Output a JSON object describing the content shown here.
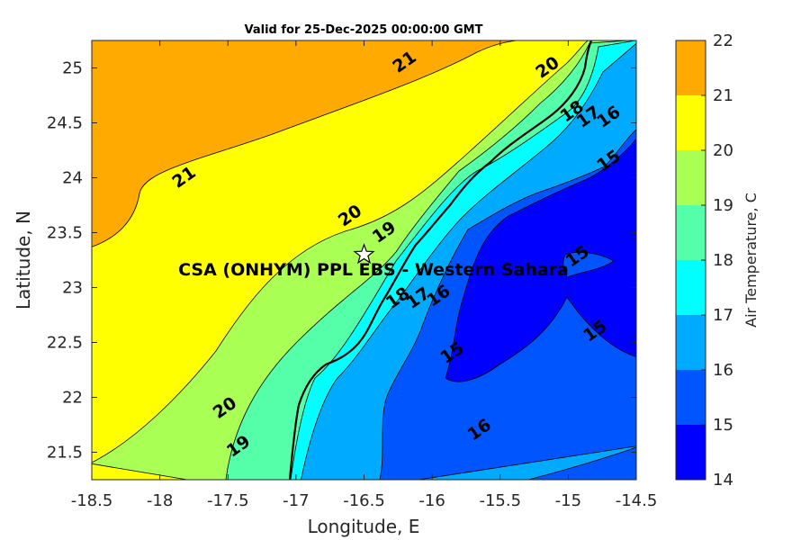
{
  "chart_data": {
    "type": "contour",
    "title": "Valid for 25-Dec-2025 00:00:00 GMT",
    "xlabel": "Longitude, E",
    "ylabel": "Latitude, N",
    "xlim": [
      -18.5,
      -14.5
    ],
    "ylim": [
      21.25,
      25.25
    ],
    "x_ticks": [
      "-18.5",
      "-18",
      "-17.5",
      "-17",
      "-16.5",
      "-16",
      "-15.5",
      "-15",
      "-14.5"
    ],
    "y_ticks": [
      "21.5",
      "22",
      "22.5",
      "23",
      "23.5",
      "24",
      "24.5",
      "25"
    ],
    "colorbar": {
      "label": "Air Temperature, C",
      "ticks": [
        "14",
        "15",
        "16",
        "17",
        "18",
        "19",
        "20",
        "21",
        "22"
      ],
      "levels": [
        14,
        15,
        16,
        17,
        18,
        19,
        20,
        21,
        22
      ],
      "colors": [
        "#0000ff",
        "#0055ff",
        "#00aaff",
        "#00ffff",
        "#55ffaa",
        "#aaff55",
        "#ffff00",
        "#ffaa00",
        "#ff5500"
      ]
    },
    "contour_labels": [
      {
        "text": "21",
        "lon": -16.2,
        "lat": 25.05
      },
      {
        "text": "20",
        "lon": -15.15,
        "lat": 25.0
      },
      {
        "text": "21",
        "lon": -17.82,
        "lat": 24.0
      },
      {
        "text": "18",
        "lon": -14.97,
        "lat": 24.6
      },
      {
        "text": "17",
        "lon": -14.85,
        "lat": 24.55
      },
      {
        "text": "16",
        "lon": -14.7,
        "lat": 24.55
      },
      {
        "text": "20",
        "lon": -16.6,
        "lat": 23.65
      },
      {
        "text": "19",
        "lon": -16.35,
        "lat": 23.5
      },
      {
        "text": "15",
        "lon": -14.7,
        "lat": 24.15
      },
      {
        "text": "15",
        "lon": -14.93,
        "lat": 23.28
      },
      {
        "text": "18",
        "lon": -16.25,
        "lat": 22.9
      },
      {
        "text": "17",
        "lon": -16.1,
        "lat": 22.9
      },
      {
        "text": "16",
        "lon": -15.95,
        "lat": 22.92
      },
      {
        "text": "15",
        "lon": -14.8,
        "lat": 22.6
      },
      {
        "text": "15",
        "lon": -15.85,
        "lat": 22.4
      },
      {
        "text": "20",
        "lon": -17.52,
        "lat": 21.9
      },
      {
        "text": "19",
        "lon": -17.42,
        "lat": 21.55
      },
      {
        "text": "16",
        "lon": -15.65,
        "lat": 21.7
      }
    ],
    "site": {
      "name": "CSA (ONHYM) PPL EBS - Western Sahara",
      "lon": -16.5,
      "lat": 23.3
    }
  }
}
